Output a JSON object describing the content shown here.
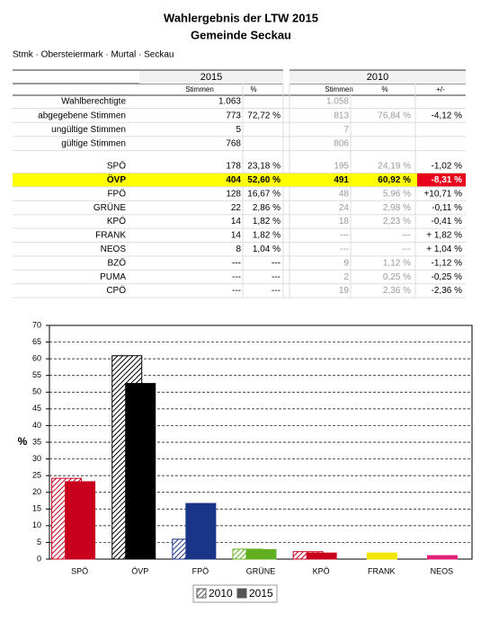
{
  "header": {
    "title": "Wahlergebnis der LTW 2015",
    "subtitle": "Gemeinde Seckau",
    "breadcrumb": "Stmk · Obersteiermark · Murtal · Seckau"
  },
  "table": {
    "headers": {
      "year_2015": "2015",
      "year_2010": "2010",
      "votes_2015": "Stimmen",
      "pct_2015": "%",
      "votes_2010": "Stimmen",
      "pct_2010": "%",
      "diff": "+/-"
    },
    "summary_rows": [
      {
        "label": "Wahlberechtigte",
        "votes_2015": "1.063",
        "votes_2010": "1.058"
      },
      {
        "label": "abgegebene Stimmen",
        "votes_2015": "773",
        "pct_2015": "72,72 %",
        "votes_2010": "813",
        "pct_2010": "76,84 %",
        "diff": "-4,12 %"
      },
      {
        "label": "ungültige Stimmen",
        "votes_2015": "5",
        "votes_2010": "7"
      },
      {
        "label": "gültige Stimmen",
        "votes_2015": "768",
        "votes_2010": "806"
      }
    ],
    "party_rows": [
      {
        "label": "SPÖ",
        "votes_2015": "178",
        "pct_2015": "23,18 %",
        "votes_2010": "195",
        "pct_2010": "24,19 %",
        "diff": "-1,02 %"
      },
      {
        "label": "ÖVP",
        "votes_2015": "404",
        "pct_2015": "52,60 %",
        "votes_2010": "491",
        "pct_2010": "60,92 %",
        "diff": "-8,31 %",
        "highlight": true
      },
      {
        "label": "FPÖ",
        "votes_2015": "128",
        "pct_2015": "16,67 %",
        "votes_2010": "48",
        "pct_2010": "5,96 %",
        "diff": "+10,71 %"
      },
      {
        "label": "GRÜNE",
        "votes_2015": "22",
        "pct_2015": "2,86 %",
        "votes_2010": "24",
        "pct_2010": "2,98 %",
        "diff": "-0,11 %"
      },
      {
        "label": "KPÖ",
        "votes_2015": "14",
        "pct_2015": "1,82 %",
        "votes_2010": "18",
        "pct_2010": "2,23 %",
        "diff": "-0,41 %"
      },
      {
        "label": "FRANK",
        "votes_2015": "14",
        "pct_2015": "1,82 %",
        "votes_2010": "---",
        "pct_2010": "---",
        "diff": "+ 1,82 %"
      },
      {
        "label": "NEOS",
        "votes_2015": "8",
        "pct_2015": "1,04 %",
        "votes_2010": "---",
        "pct_2010": "---",
        "diff": "+ 1,04 %"
      },
      {
        "label": "BZÖ",
        "votes_2015": "---",
        "pct_2015": "---",
        "votes_2010": "9",
        "pct_2010": "1,12 %",
        "diff": "-1,12 %"
      },
      {
        "label": "PUMA",
        "votes_2015": "---",
        "pct_2015": "---",
        "votes_2010": "2",
        "pct_2010": "0,25 %",
        "diff": "-0,25 %"
      },
      {
        "label": "CPÖ",
        "votes_2015": "---",
        "pct_2015": "---",
        "votes_2010": "19",
        "pct_2010": "2,36 %",
        "diff": "-2,36 %"
      }
    ]
  },
  "chart_data": {
    "type": "bar",
    "ylabel": "%",
    "categories": [
      "SPÖ",
      "ÖVP",
      "FPÖ",
      "GRÜNE",
      "KPÖ",
      "FRANK",
      "NEOS"
    ],
    "colors": [
      "#c8001e",
      "#000000",
      "#1a3587",
      "#62b022",
      "#c8001e",
      "#f2e600",
      "#e2207a"
    ],
    "series": [
      {
        "name": "2010",
        "color": "#555555",
        "hatched": true,
        "values": [
          24.19,
          60.92,
          5.96,
          2.98,
          2.23,
          null,
          null
        ]
      },
      {
        "name": "2015",
        "color": "#555555",
        "hatched": false,
        "values": [
          23.18,
          52.6,
          16.67,
          2.86,
          1.82,
          1.82,
          1.04
        ]
      }
    ],
    "ylim": [
      0,
      70
    ],
    "yticks": [
      0,
      5,
      10,
      15,
      20,
      25,
      30,
      35,
      40,
      45,
      50,
      55,
      60,
      65,
      70
    ],
    "grid": true
  }
}
